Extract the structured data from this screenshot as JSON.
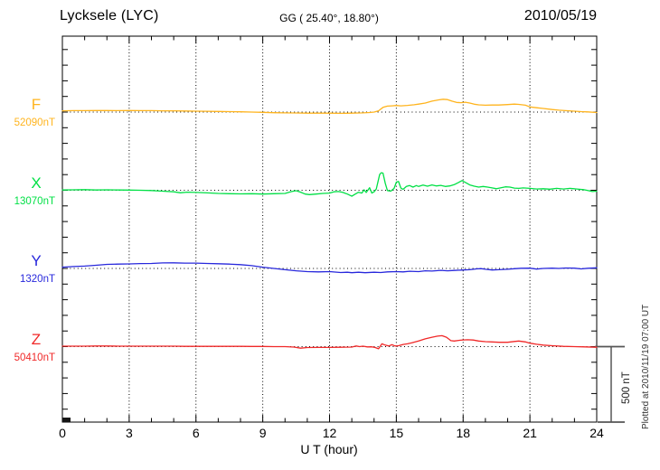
{
  "header": {
    "station": "Lycksele (LYC)",
    "coordinates": "GG ( 25.40°,  18.80°)",
    "date": "2010/05/19"
  },
  "axes": {
    "xlabel": "U T (hour)",
    "hour_tick_labels": [
      "0",
      "3",
      "6",
      "9",
      "12",
      "15",
      "18",
      "21",
      "24"
    ],
    "hour_tick_values": [
      0,
      3,
      6,
      9,
      12,
      15,
      18,
      21,
      24
    ],
    "grid_hours": [
      3,
      6,
      9,
      12,
      15,
      18,
      21
    ],
    "x_range": [
      0,
      24
    ]
  },
  "scale_bar": {
    "label": "500 nT",
    "nT": 500
  },
  "footer_note": "Plotted at 2010/11/19 07:00 UT",
  "chart_data": {
    "type": "line",
    "title": "Lycksele (LYC) magnetogram 2010/05/19",
    "xlabel": "U T (hour)",
    "x_range": [
      0,
      24
    ],
    "grid": "dotted-vertical-every-3h",
    "minor_tick_nT": 100,
    "baseline_spacing_nT": 500,
    "legend_position": "left-margin",
    "series": [
      {
        "name": "F",
        "baseline_label": "52090nT",
        "baseline_nT": 52090,
        "color": "#FFB41E",
        "points_hour_offsetnT": [
          [
            0,
            8
          ],
          [
            0.5,
            9
          ],
          [
            1,
            9
          ],
          [
            1.5,
            10
          ],
          [
            2,
            10
          ],
          [
            2.5,
            9
          ],
          [
            3,
            10
          ],
          [
            3.5,
            9
          ],
          [
            4,
            9
          ],
          [
            4.5,
            8
          ],
          [
            5,
            8
          ],
          [
            5.5,
            7
          ],
          [
            6,
            6
          ],
          [
            6.5,
            5
          ],
          [
            7,
            4
          ],
          [
            7.5,
            3
          ],
          [
            8,
            2
          ],
          [
            8.5,
            0
          ],
          [
            9,
            -2
          ],
          [
            9.5,
            -4
          ],
          [
            10,
            -5
          ],
          [
            10.5,
            -6
          ],
          [
            11,
            -7
          ],
          [
            11.5,
            -7
          ],
          [
            12,
            -7
          ],
          [
            12.5,
            -8
          ],
          [
            13,
            -7
          ],
          [
            13.5,
            -5
          ],
          [
            13.8,
            -3
          ],
          [
            14,
            0
          ],
          [
            14.2,
            8
          ],
          [
            14.4,
            30
          ],
          [
            14.6,
            38
          ],
          [
            14.8,
            40
          ],
          [
            15,
            42
          ],
          [
            15.2,
            40
          ],
          [
            15.5,
            43
          ],
          [
            15.8,
            47
          ],
          [
            16,
            51
          ],
          [
            16.3,
            58
          ],
          [
            16.6,
            70
          ],
          [
            16.9,
            78
          ],
          [
            17.1,
            82
          ],
          [
            17.3,
            80
          ],
          [
            17.5,
            70
          ],
          [
            17.7,
            62
          ],
          [
            17.9,
            60
          ],
          [
            18.1,
            63
          ],
          [
            18.3,
            58
          ],
          [
            18.5,
            50
          ],
          [
            18.7,
            46
          ],
          [
            19,
            44
          ],
          [
            19.3,
            45
          ],
          [
            19.6,
            45
          ],
          [
            20,
            48
          ],
          [
            20.3,
            51
          ],
          [
            20.5,
            49
          ],
          [
            20.8,
            44
          ],
          [
            21,
            33
          ],
          [
            21.3,
            28
          ],
          [
            21.6,
            23
          ],
          [
            22,
            16
          ],
          [
            22.3,
            12
          ],
          [
            22.6,
            9
          ],
          [
            23,
            6
          ],
          [
            23.3,
            3
          ],
          [
            23.6,
            1
          ],
          [
            24,
            -3
          ]
        ]
      },
      {
        "name": "X",
        "baseline_label": "13070nT",
        "baseline_nT": 13070,
        "color": "#00E045",
        "points_hour_offsetnT": [
          [
            0,
            2
          ],
          [
            0.5,
            3
          ],
          [
            1,
            4
          ],
          [
            1.5,
            2
          ],
          [
            2,
            3
          ],
          [
            2.5,
            2
          ],
          [
            3,
            1
          ],
          [
            3.5,
            0
          ],
          [
            4,
            -2
          ],
          [
            4.5,
            -6
          ],
          [
            5,
            -10
          ],
          [
            5.3,
            -16
          ],
          [
            5.6,
            -12
          ],
          [
            6,
            -14
          ],
          [
            6.5,
            -17
          ],
          [
            7,
            -20
          ],
          [
            7.5,
            -22
          ],
          [
            8,
            -23
          ],
          [
            8.5,
            -22
          ],
          [
            9,
            -24
          ],
          [
            9.5,
            -22
          ],
          [
            10,
            -20
          ],
          [
            10.3,
            -8
          ],
          [
            10.5,
            -3
          ],
          [
            10.7,
            -12
          ],
          [
            10.9,
            -24
          ],
          [
            11.1,
            -28
          ],
          [
            11.4,
            -24
          ],
          [
            11.7,
            -20
          ],
          [
            12,
            -18
          ],
          [
            12.2,
            -10
          ],
          [
            12.4,
            -8
          ],
          [
            12.6,
            -14
          ],
          [
            12.8,
            -24
          ],
          [
            13,
            -38
          ],
          [
            13.15,
            -25
          ],
          [
            13.3,
            -13
          ],
          [
            13.45,
            -18
          ],
          [
            13.55,
            3
          ],
          [
            13.65,
            -14
          ],
          [
            13.8,
            16
          ],
          [
            13.9,
            -18
          ],
          [
            14,
            -10
          ],
          [
            14.1,
            8
          ],
          [
            14.25,
            100
          ],
          [
            14.32,
            112
          ],
          [
            14.4,
            110
          ],
          [
            14.5,
            45
          ],
          [
            14.6,
            -2
          ],
          [
            14.75,
            -6
          ],
          [
            14.9,
            12
          ],
          [
            15,
            52
          ],
          [
            15.1,
            56
          ],
          [
            15.2,
            15
          ],
          [
            15.3,
            6
          ],
          [
            15.45,
            24
          ],
          [
            15.6,
            30
          ],
          [
            15.75,
            20
          ],
          [
            15.9,
            30
          ],
          [
            16,
            24
          ],
          [
            16.2,
            33
          ],
          [
            16.4,
            26
          ],
          [
            16.6,
            34
          ],
          [
            16.8,
            28
          ],
          [
            17,
            31
          ],
          [
            17.2,
            24
          ],
          [
            17.4,
            28
          ],
          [
            17.6,
            36
          ],
          [
            17.8,
            50
          ],
          [
            17.95,
            62
          ],
          [
            18.1,
            50
          ],
          [
            18.3,
            34
          ],
          [
            18.5,
            26
          ],
          [
            18.7,
            20
          ],
          [
            18.9,
            24
          ],
          [
            19.1,
            20
          ],
          [
            19.3,
            15
          ],
          [
            19.5,
            10
          ],
          [
            19.7,
            16
          ],
          [
            19.9,
            22
          ],
          [
            20.1,
            20
          ],
          [
            20.3,
            14
          ],
          [
            20.5,
            12
          ],
          [
            20.7,
            15
          ],
          [
            21,
            12
          ],
          [
            21.3,
            8
          ],
          [
            21.6,
            10
          ],
          [
            21.9,
            7
          ],
          [
            22.2,
            12
          ],
          [
            22.5,
            8
          ],
          [
            22.8,
            12
          ],
          [
            23.1,
            8
          ],
          [
            23.4,
            4
          ],
          [
            23.6,
            -2
          ],
          [
            23.8,
            -8
          ],
          [
            24,
            -6
          ]
        ]
      },
      {
        "name": "Y",
        "baseline_label": "1320nT",
        "baseline_nT": 1320,
        "color": "#2828DC",
        "points_hour_offsetnT": [
          [
            0,
            8
          ],
          [
            0.5,
            12
          ],
          [
            1,
            15
          ],
          [
            1.5,
            20
          ],
          [
            2,
            26
          ],
          [
            2.5,
            28
          ],
          [
            3,
            29
          ],
          [
            3.5,
            31
          ],
          [
            4,
            32
          ],
          [
            4.5,
            35
          ],
          [
            5,
            36
          ],
          [
            5.5,
            34
          ],
          [
            6,
            34
          ],
          [
            6.5,
            32
          ],
          [
            7,
            30
          ],
          [
            7.5,
            28
          ],
          [
            8,
            24
          ],
          [
            8.5,
            18
          ],
          [
            9,
            8
          ],
          [
            9.5,
            0
          ],
          [
            10,
            -8
          ],
          [
            10.5,
            -15
          ],
          [
            11,
            -20
          ],
          [
            11.5,
            -22
          ],
          [
            12,
            -20
          ],
          [
            12.5,
            -26
          ],
          [
            12.8,
            -24
          ],
          [
            13,
            -27
          ],
          [
            13.3,
            -24
          ],
          [
            13.6,
            -27
          ],
          [
            14,
            -24
          ],
          [
            14.3,
            -26
          ],
          [
            14.6,
            -22
          ],
          [
            15,
            -20
          ],
          [
            15.3,
            -22
          ],
          [
            15.6,
            -18
          ],
          [
            16,
            -20
          ],
          [
            16.3,
            -15
          ],
          [
            16.6,
            -17
          ],
          [
            17,
            -12
          ],
          [
            17.3,
            -15
          ],
          [
            17.6,
            -13
          ],
          [
            18,
            -10
          ],
          [
            18.3,
            -8
          ],
          [
            18.6,
            -3
          ],
          [
            18.8,
            -1
          ],
          [
            19,
            -5
          ],
          [
            19.3,
            -10
          ],
          [
            19.6,
            -8
          ],
          [
            20,
            -5
          ],
          [
            20.3,
            -2
          ],
          [
            20.6,
            1
          ],
          [
            21,
            2
          ],
          [
            21.3,
            -4
          ],
          [
            21.6,
            0
          ],
          [
            22,
            2
          ],
          [
            22.3,
            0
          ],
          [
            22.6,
            3
          ],
          [
            23,
            2
          ],
          [
            23.3,
            -3
          ],
          [
            23.6,
            1
          ],
          [
            24,
            4
          ]
        ]
      },
      {
        "name": "Z",
        "baseline_label": "50410nT",
        "baseline_nT": 50410,
        "color": "#F02828",
        "points_hour_offsetnT": [
          [
            0,
            3
          ],
          [
            0.5,
            3
          ],
          [
            1,
            3
          ],
          [
            1.5,
            4
          ],
          [
            2,
            4
          ],
          [
            2.5,
            3
          ],
          [
            3,
            3
          ],
          [
            3.5,
            3
          ],
          [
            4,
            3
          ],
          [
            4.5,
            3
          ],
          [
            5,
            3
          ],
          [
            5.5,
            2
          ],
          [
            6,
            2
          ],
          [
            6.5,
            2
          ],
          [
            7,
            2
          ],
          [
            7.5,
            2
          ],
          [
            8,
            2
          ],
          [
            8.5,
            1
          ],
          [
            9,
            1
          ],
          [
            9.5,
            0
          ],
          [
            10,
            0
          ],
          [
            10.4,
            -3
          ],
          [
            10.7,
            -10
          ],
          [
            11,
            -6
          ],
          [
            11.5,
            -5
          ],
          [
            12,
            -5
          ],
          [
            12.5,
            -4
          ],
          [
            13,
            -3
          ],
          [
            13.2,
            4
          ],
          [
            13.35,
            0
          ],
          [
            13.5,
            3
          ],
          [
            13.7,
            -2
          ],
          [
            13.9,
            -1
          ],
          [
            14.05,
            -6
          ],
          [
            14.2,
            -14
          ],
          [
            14.35,
            18
          ],
          [
            14.5,
            10
          ],
          [
            14.65,
            4
          ],
          [
            14.8,
            12
          ],
          [
            14.95,
            4
          ],
          [
            15.1,
            6
          ],
          [
            15.3,
            14
          ],
          [
            15.5,
            18
          ],
          [
            15.7,
            24
          ],
          [
            16,
            36
          ],
          [
            16.3,
            50
          ],
          [
            16.6,
            60
          ],
          [
            16.85,
            67
          ],
          [
            17.05,
            70
          ],
          [
            17.25,
            60
          ],
          [
            17.45,
            38
          ],
          [
            17.6,
            36
          ],
          [
            17.8,
            40
          ],
          [
            18,
            43
          ],
          [
            18.2,
            44
          ],
          [
            18.45,
            42
          ],
          [
            18.7,
            36
          ],
          [
            19,
            32
          ],
          [
            19.3,
            30
          ],
          [
            19.6,
            28
          ],
          [
            20,
            28
          ],
          [
            20.3,
            33
          ],
          [
            20.5,
            36
          ],
          [
            20.8,
            30
          ],
          [
            21,
            22
          ],
          [
            21.3,
            15
          ],
          [
            21.6,
            10
          ],
          [
            22,
            6
          ],
          [
            22.5,
            2
          ],
          [
            23,
            0
          ],
          [
            23.5,
            -2
          ],
          [
            24,
            -4
          ]
        ]
      }
    ]
  }
}
